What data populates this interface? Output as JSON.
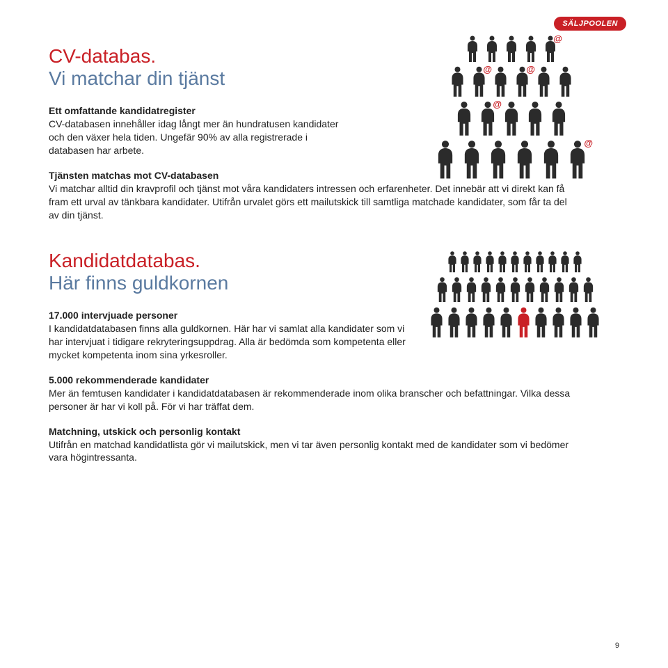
{
  "brand": "SÄLJPOOLEN",
  "section1": {
    "title1": "CV-databas.",
    "title2": "Vi matchar din tjänst",
    "p1_bold": "Ett omfattande kandidatregister",
    "p1_text": "CV-databasen innehåller idag långt mer än hundratusen kandidater och den växer hela tiden. Ungefär 90% av alla registrerade i databasen har arbete.",
    "p2_bold": "Tjänsten matchas mot CV-databasen",
    "p2_text": "Vi matchar alltid din kravprofil och tjänst mot våra kandidaters intressen och erfarenheter. Det innebär att vi direkt kan få fram ett urval av tänkbara kandidater. Utifrån urvalet görs ett mailutskick till samtliga matchade kandidater, som får ta del av din tjänst."
  },
  "section2": {
    "title1": "Kandidatdatabas.",
    "title2": "Här finns guldkornen",
    "p1_bold": "17.000 intervjuade personer",
    "p1_text": "I kandidatdatabasen finns alla guldkornen. Här har vi samlat alla kandidater som vi har intervjuat i tidigare rekryteringsuppdrag. Alla är bedömda som kompetenta eller mycket kompetenta inom sina yrkesroller.",
    "p2_bold": "5.000 rekommenderade kandidater",
    "p2_text": "Mer än femtusen kandidater i kandidatdatabasen är rekommenderade inom olika branscher och befattningar. Vilka dessa personer är har vi koll på. För vi har träffat dem.",
    "p3_bold": "Matchning, utskick och  personlig kontakt",
    "p3_text": "Utifrån en matchad kandidatlista gör vi mailutskick, men vi tar även personlig kontakt med de kandidater som vi bedömer vara högintressanta."
  },
  "page_number": "9",
  "colors": {
    "brand_red": "#c92026",
    "heading_blue": "#5a7aa0",
    "silhouette_dark": "#2b2b2b",
    "silhouette_highlight": "#c92026",
    "text": "#222222",
    "background": "#ffffff"
  },
  "at_symbol": "@",
  "illus1_rows": [
    {
      "count": 5,
      "at_indices": [
        4
      ],
      "cls": "r1"
    },
    {
      "count": 6,
      "at_indices": [
        1,
        3
      ],
      "cls": "r2"
    },
    {
      "count": 5,
      "at_indices": [
        1
      ],
      "cls": "r3"
    },
    {
      "count": 6,
      "at_indices": [
        5
      ],
      "cls": "r4"
    }
  ],
  "illus2_rows": [
    {
      "count": 11,
      "highlight": -1,
      "cls": "back"
    },
    {
      "count": 11,
      "highlight": -1,
      "cls": "mid"
    },
    {
      "count": 10,
      "highlight": 5,
      "cls": "front"
    }
  ]
}
